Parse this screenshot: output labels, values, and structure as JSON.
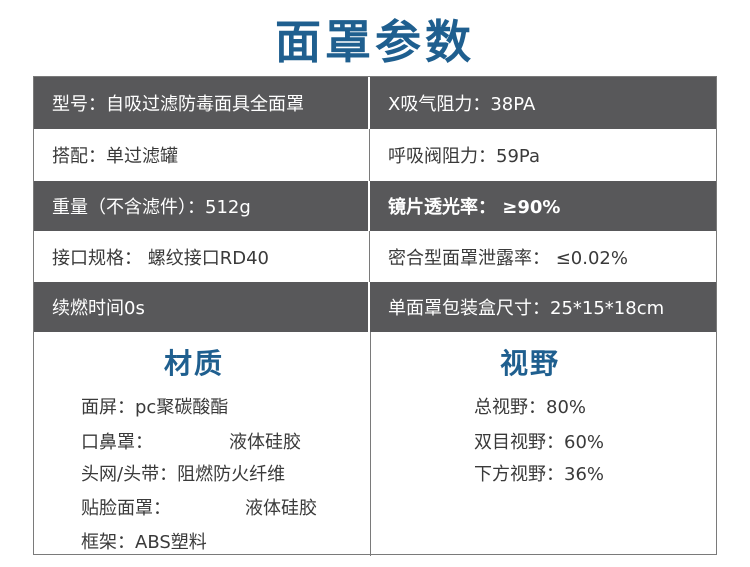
{
  "title": "面罩参数",
  "rows": [
    {
      "left": "型号：自吸过滤防毒面具全面罩",
      "right": "X吸气阻力：38PA"
    },
    {
      "left": "搭配：单过滤罐",
      "right": "呼吸阀阻力：59Pa"
    },
    {
      "left": "重量（不含滤件）：512g",
      "right": "镜片透光率： ≥90%"
    },
    {
      "left": "接口规格： 螺纹接口RD40",
      "right": "密合型面罩泄露率： ≤0.02%"
    },
    {
      "left": "续燃时间0s",
      "right": "单面罩包装盒尺寸：25*15*18cm"
    }
  ],
  "material": {
    "title": "材质",
    "items": [
      {
        "label": "面屏：",
        "value": "pc聚碳酸酯"
      },
      {
        "label": "口鼻罩：",
        "value": "液体硅胶"
      },
      {
        "label": "头网/头带：",
        "value": "阻燃防火纤维"
      },
      {
        "label": "贴脸面罩：",
        "value": "液体硅胶"
      },
      {
        "label": "框架：",
        "value": "ABS塑料"
      }
    ]
  },
  "vision": {
    "title": "视野",
    "items": [
      "总视野：80%",
      "双目视野：60%",
      "下方视野：36%"
    ]
  },
  "colors": {
    "accent": "#1f5f8f",
    "dark_row": "#58585a"
  }
}
